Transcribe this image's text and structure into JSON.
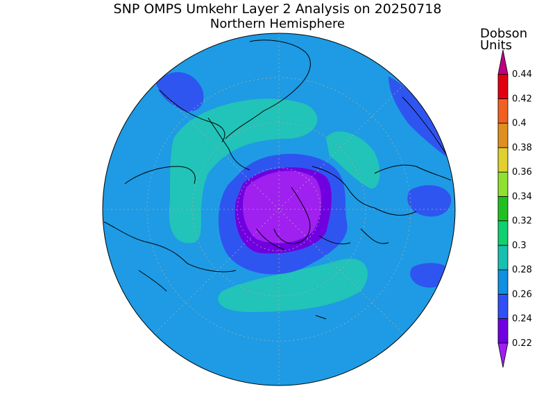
{
  "title": "SNP OMPS Umkehr Layer 2 Analysis on 20250718",
  "subtitle": "Northern Hemisphere",
  "colorbar": {
    "title_line1": "Dobson",
    "title_line2": "Units",
    "tick_labels": [
      "0.22",
      "0.24",
      "0.26",
      "0.28",
      "0.3",
      "0.32",
      "0.34",
      "0.36",
      "0.38",
      "0.4",
      "0.42",
      "0.44"
    ],
    "colors": [
      "#a020f0",
      "#7000e0",
      "#3050f5",
      "#1090e0",
      "#18c0b0",
      "#10d070",
      "#20c020",
      "#90e030",
      "#e0d030",
      "#e09020",
      "#f06020",
      "#e00010",
      "#c00080"
    ]
  },
  "map_colors": {
    "ocean_fill": "#1e9be4",
    "low_262": "#2f55f0",
    "low_24": "#7000e0",
    "low_22": "#a020f0",
    "high_28": "#22c3b8",
    "coast": "#000000",
    "grid": "#aaaaaa"
  },
  "projection": "polar stereographic, north pole",
  "grid": true
}
